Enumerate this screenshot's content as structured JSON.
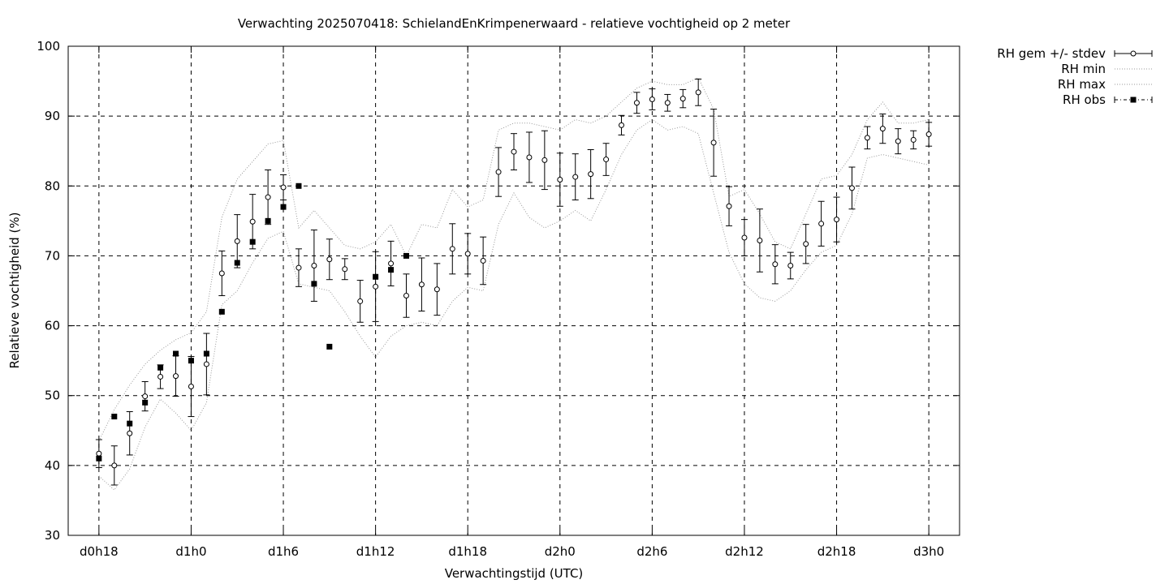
{
  "chart_data": {
    "type": "line",
    "title": "Verwachting 2025070418: SchielandEnKrimpenerwaard - relatieve vochtigheid op 2 meter",
    "xlabel": "Verwachtingstijd (UTC)",
    "ylabel": "Relatieve vochtigheid (%)",
    "ylim": [
      30,
      100
    ],
    "yticks": [
      30,
      40,
      50,
      60,
      70,
      80,
      90,
      100
    ],
    "xlim_hours": [
      16,
      74
    ],
    "xticks": [
      {
        "hour": 18,
        "label": "d0h18"
      },
      {
        "hour": 24,
        "label": "d1h0"
      },
      {
        "hour": 30,
        "label": "d1h6"
      },
      {
        "hour": 36,
        "label": "d1h12"
      },
      {
        "hour": 42,
        "label": "d1h18"
      },
      {
        "hour": 48,
        "label": "d2h0"
      },
      {
        "hour": 54,
        "label": "d2h6"
      },
      {
        "hour": 60,
        "label": "d2h12"
      },
      {
        "hour": 66,
        "label": "d2h18"
      },
      {
        "hour": 72,
        "label": "d3h0"
      }
    ],
    "grid": true,
    "legend_position": "outside-right-top",
    "legend": [
      {
        "key": "mean",
        "label": "RH gem +/- stdev"
      },
      {
        "key": "min",
        "label": "RH min"
      },
      {
        "key": "max",
        "label": "RH max"
      },
      {
        "key": "obs",
        "label": "RH obs"
      }
    ],
    "hours": [
      18,
      19,
      20,
      21,
      22,
      23,
      24,
      25,
      26,
      27,
      28,
      29,
      30,
      31,
      32,
      33,
      34,
      35,
      36,
      37,
      38,
      39,
      40,
      41,
      42,
      43,
      44,
      45,
      46,
      47,
      48,
      49,
      50,
      51,
      52,
      53,
      54,
      55,
      56,
      57,
      58,
      59,
      60,
      61,
      62,
      63,
      64,
      65,
      66,
      67,
      68,
      69,
      70,
      71,
      72
    ],
    "mean": [
      41.7,
      40.0,
      44.6,
      49.9,
      52.7,
      52.8,
      51.3,
      54.5,
      67.5,
      72.1,
      74.9,
      78.4,
      79.8,
      68.3,
      68.6,
      69.5,
      68.1,
      63.5,
      65.6,
      68.9,
      64.3,
      65.9,
      65.2,
      71.0,
      70.3,
      69.3,
      82.0,
      84.9,
      84.1,
      83.7,
      80.9,
      81.3,
      81.7,
      83.8,
      88.7,
      91.9,
      92.4,
      91.9,
      92.5,
      93.4,
      86.2,
      77.1,
      72.6,
      72.2,
      68.8,
      68.6,
      71.7,
      74.6,
      75.2,
      79.7,
      86.9,
      88.2,
      86.4,
      86.6,
      87.4
    ],
    "stdev": [
      2.0,
      2.8,
      3.1,
      2.1,
      1.7,
      2.9,
      4.3,
      4.4,
      3.2,
      3.8,
      3.9,
      3.9,
      1.8,
      2.7,
      5.1,
      2.9,
      1.5,
      3.0,
      5.0,
      3.2,
      3.1,
      3.8,
      3.7,
      3.6,
      2.9,
      3.4,
      3.5,
      2.6,
      3.6,
      4.2,
      3.8,
      3.3,
      3.5,
      2.3,
      1.4,
      1.5,
      1.5,
      1.2,
      1.3,
      1.9,
      4.8,
      2.8,
      2.6,
      4.5,
      2.8,
      1.9,
      2.8,
      3.2,
      3.2,
      3.0,
      1.6,
      2.1,
      1.8,
      1.3,
      1.7
    ],
    "min": [
      38.5,
      36.5,
      39.5,
      45.5,
      49.5,
      47.5,
      45.0,
      49.0,
      63.0,
      65.0,
      69.0,
      72.5,
      73.5,
      66.0,
      65.5,
      65.0,
      62.0,
      58.5,
      55.5,
      58.5,
      60.0,
      60.5,
      60.0,
      63.5,
      65.5,
      65.0,
      74.5,
      79.0,
      75.5,
      74.0,
      75.0,
      76.5,
      75.0,
      79.5,
      84.5,
      88.0,
      89.5,
      88.0,
      88.5,
      87.5,
      79.0,
      70.5,
      66.0,
      64.0,
      63.5,
      65.0,
      68.0,
      70.5,
      71.5,
      76.0,
      84.0,
      84.5,
      84.0,
      83.5,
      83.0
    ],
    "max": [
      43.5,
      48.0,
      51.5,
      54.5,
      56.5,
      58.0,
      59.0,
      62.0,
      75.5,
      81.0,
      83.5,
      86.0,
      86.5,
      74.0,
      76.5,
      74.0,
      71.5,
      71.0,
      72.0,
      74.5,
      70.0,
      74.5,
      74.0,
      79.5,
      77.0,
      78.0,
      88.0,
      89.0,
      89.0,
      88.5,
      88.0,
      89.5,
      89.0,
      90.0,
      92.0,
      94.0,
      95.0,
      94.5,
      94.5,
      95.5,
      91.0,
      78.5,
      79.5,
      76.0,
      72.0,
      71.0,
      76.0,
      81.0,
      81.5,
      84.5,
      89.5,
      92.0,
      89.0,
      89.0,
      89.5
    ],
    "obs": [
      {
        "hour": 18,
        "value": 41
      },
      {
        "hour": 19,
        "value": 47
      },
      {
        "hour": 20,
        "value": 46
      },
      {
        "hour": 21,
        "value": 49
      },
      {
        "hour": 22,
        "value": 54
      },
      {
        "hour": 23,
        "value": 56
      },
      {
        "hour": 24,
        "value": 55
      },
      {
        "hour": 25,
        "value": 56
      },
      {
        "hour": 26,
        "value": 62
      },
      {
        "hour": 27,
        "value": 69
      },
      {
        "hour": 28,
        "value": 72
      },
      {
        "hour": 29,
        "value": 75
      },
      {
        "hour": 30,
        "value": 77
      },
      {
        "hour": 31,
        "value": 80
      },
      {
        "hour": 32,
        "value": 66
      },
      {
        "hour": 33,
        "value": 57
      },
      {
        "hour": 36,
        "value": 67
      },
      {
        "hour": 37,
        "value": 68
      },
      {
        "hour": 38,
        "value": 70
      }
    ]
  }
}
